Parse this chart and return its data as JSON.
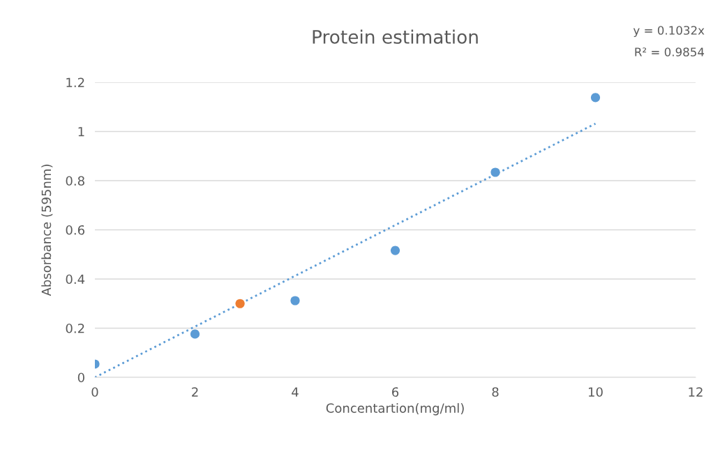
{
  "chart_data": {
    "type": "scatter",
    "title": "Protein estimation",
    "xlabel": "Concentartion(mg/ml)",
    "ylabel": "Absorbance (595nm)",
    "annotations": [
      "y = 0.1032x",
      "R² = 0.9854"
    ],
    "series": [
      {
        "color": "#5b9bd5",
        "x": [
          0,
          2,
          4,
          6,
          8,
          10
        ],
        "values": [
          0.054,
          0.176,
          0.312,
          0.516,
          0.834,
          1.138
        ],
        "marker": "circle"
      },
      {
        "color": "#ed7d31",
        "x": [
          2.9
        ],
        "values": [
          0.3
        ],
        "marker": "circle"
      },
      {
        "type": "line",
        "color": "#5b9bd5",
        "x": [
          0,
          10
        ],
        "values": [
          0,
          1.032
        ],
        "line_style": "dotted",
        "marker": "none"
      }
    ],
    "xlim": [
      0,
      12
    ],
    "xticks": [
      0,
      2,
      4,
      6,
      8,
      10,
      12
    ],
    "ylim": [
      0,
      1.2
    ],
    "yticks": [
      0,
      0.2,
      0.4,
      0.6,
      0.8,
      1,
      1.2
    ],
    "grid": "y"
  }
}
